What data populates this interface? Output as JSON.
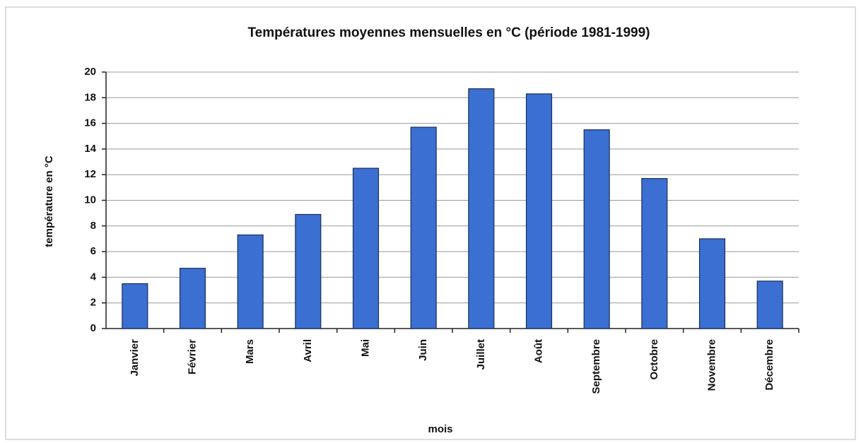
{
  "chart_data": {
    "type": "bar",
    "title": "Températures moyennes mensuelles en °C (période 1981-1999)",
    "x_label": "mois",
    "y_label": "température en °C",
    "categories": [
      "Janvier",
      "Février",
      "Mars",
      "Avril",
      "Mai",
      "Juin",
      "Juillet",
      "Août",
      "Septembre",
      "Octobre",
      "Novembre",
      "Décembre"
    ],
    "values": [
      3.5,
      4.7,
      7.3,
      8.9,
      12.5,
      15.7,
      18.7,
      18.3,
      15.5,
      11.7,
      7.0,
      3.7
    ],
    "color": "#3b6fd1",
    "ylim": [
      0,
      20
    ],
    "yticks": [
      0,
      2,
      4,
      6,
      8,
      10,
      12,
      14,
      16,
      18,
      20
    ],
    "grid": true
  }
}
